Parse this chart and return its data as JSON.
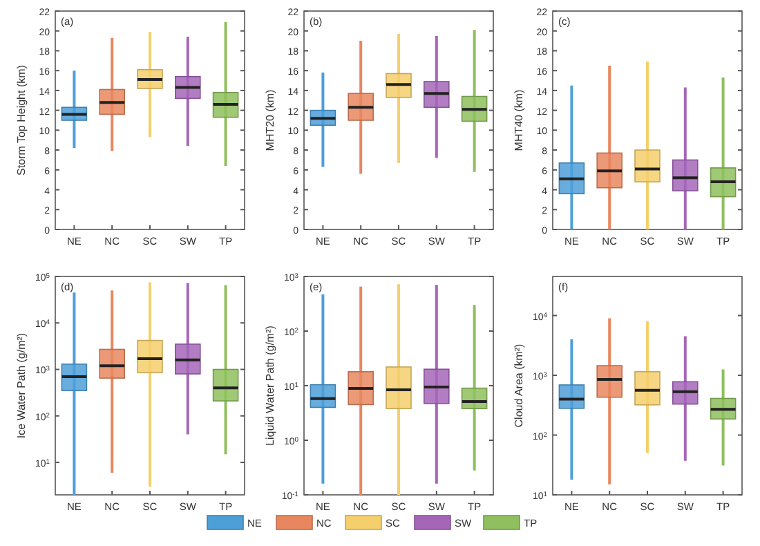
{
  "chart_data": [
    {
      "type": "box",
      "annotations": [
        "(a)"
      ],
      "ylabel": "Storm Top Height (km)",
      "categories": [
        "NE",
        "NC",
        "SC",
        "SW",
        "TP"
      ],
      "colors": [
        "#4d9fd8",
        "#e8875f",
        "#f5cf6c",
        "#a566b8",
        "#8fbf5e"
      ],
      "ylim": [
        0,
        22
      ],
      "yticks": [
        0,
        2,
        4,
        6,
        8,
        10,
        12,
        14,
        16,
        18,
        20,
        22
      ],
      "boxes": [
        {
          "low": 8.2,
          "q1": 11.0,
          "median": 11.6,
          "q3": 12.3,
          "high": 16.0
        },
        {
          "low": 7.9,
          "q1": 11.6,
          "median": 12.8,
          "q3": 14.1,
          "high": 19.3
        },
        {
          "low": 9.3,
          "q1": 14.2,
          "median": 15.1,
          "q3": 16.1,
          "high": 19.9
        },
        {
          "low": 8.4,
          "q1": 13.2,
          "median": 14.3,
          "q3": 15.4,
          "high": 19.4
        },
        {
          "low": 6.4,
          "q1": 11.3,
          "median": 12.6,
          "q3": 13.8,
          "high": 20.9
        }
      ]
    },
    {
      "type": "box",
      "annotations": [
        "(b)"
      ],
      "ylabel": "MHT20 (km)",
      "categories": [
        "NE",
        "NC",
        "SC",
        "SW",
        "TP"
      ],
      "colors": [
        "#4d9fd8",
        "#e8875f",
        "#f5cf6c",
        "#a566b8",
        "#8fbf5e"
      ],
      "ylim": [
        0,
        22
      ],
      "yticks": [
        0,
        2,
        4,
        6,
        8,
        10,
        12,
        14,
        16,
        18,
        20,
        22
      ],
      "boxes": [
        {
          "low": 6.3,
          "q1": 10.5,
          "median": 11.2,
          "q3": 12.0,
          "high": 15.8
        },
        {
          "low": 5.6,
          "q1": 11.0,
          "median": 12.3,
          "q3": 13.7,
          "high": 19.0
        },
        {
          "low": 6.7,
          "q1": 13.3,
          "median": 14.6,
          "q3": 15.7,
          "high": 19.7
        },
        {
          "low": 7.2,
          "q1": 12.3,
          "median": 13.7,
          "q3": 14.9,
          "high": 19.5
        },
        {
          "low": 5.8,
          "q1": 10.9,
          "median": 12.1,
          "q3": 13.4,
          "high": 20.1
        }
      ]
    },
    {
      "type": "box",
      "annotations": [
        "(c)"
      ],
      "ylabel": "MHT40 (km)",
      "categories": [
        "NE",
        "NC",
        "SC",
        "SW",
        "TP"
      ],
      "colors": [
        "#4d9fd8",
        "#e8875f",
        "#f5cf6c",
        "#a566b8",
        "#8fbf5e"
      ],
      "ylim": [
        0,
        22
      ],
      "yticks": [
        0,
        2,
        4,
        6,
        8,
        10,
        12,
        14,
        16,
        18,
        20,
        22
      ],
      "boxes": [
        {
          "low": 0,
          "q1": 3.6,
          "median": 5.1,
          "q3": 6.7,
          "high": 14.5
        },
        {
          "low": 0,
          "q1": 4.2,
          "median": 5.9,
          "q3": 7.7,
          "high": 16.5
        },
        {
          "low": 0,
          "q1": 4.8,
          "median": 6.1,
          "q3": 8.0,
          "high": 16.9
        },
        {
          "low": 0,
          "q1": 3.9,
          "median": 5.2,
          "q3": 7.0,
          "high": 14.3
        },
        {
          "low": 0,
          "q1": 3.3,
          "median": 4.8,
          "q3": 6.2,
          "high": 15.3
        }
      ]
    },
    {
      "type": "box",
      "annotations": [
        "(d)"
      ],
      "ylabel": "Ice Water Path (g/m²)",
      "log": true,
      "categories": [
        "NE",
        "NC",
        "SC",
        "SW",
        "TP"
      ],
      "colors": [
        "#4d9fd8",
        "#e8875f",
        "#f5cf6c",
        "#a566b8",
        "#8fbf5e"
      ],
      "ylim": [
        2,
        100000
      ],
      "yticks": [
        {
          "value": 10,
          "label": "10$^{1}$"
        },
        {
          "value": 100,
          "label": "10$^{2}$"
        },
        {
          "value": 1000,
          "label": "10$^{3}$"
        },
        {
          "value": 10000,
          "label": "10$^{4}$"
        },
        {
          "value": 100000,
          "label": "10$^{5}$"
        }
      ],
      "boxes": [
        {
          "low": 2,
          "q1": 350,
          "median": 700,
          "q3": 1300,
          "high": 45000
        },
        {
          "low": 6,
          "q1": 650,
          "median": 1200,
          "q3": 2700,
          "high": 50000
        },
        {
          "low": 3,
          "q1": 850,
          "median": 1700,
          "q3": 4200,
          "high": 75000
        },
        {
          "low": 40,
          "q1": 800,
          "median": 1600,
          "q3": 3500,
          "high": 72000
        },
        {
          "low": 15,
          "q1": 210,
          "median": 400,
          "q3": 1000,
          "high": 65000
        }
      ]
    },
    {
      "type": "box",
      "annotations": [
        "(e)"
      ],
      "ylabel": "Liquid Water Path (g/m²)",
      "log": true,
      "legend": "bottom",
      "categories": [
        "NE",
        "NC",
        "SC",
        "SW",
        "TP"
      ],
      "ylim": [
        0.1,
        1000
      ],
      "yticks": [
        {
          "value": 0.1,
          "label": "10$^{-1}$"
        },
        {
          "value": 1,
          "label": "10$^{0}$"
        },
        {
          "value": 10,
          "label": "10$^{1}$"
        },
        {
          "value": 100,
          "label": "10$^{2}$"
        },
        {
          "value": 1000,
          "label": "10$^{3}$"
        }
      ],
      "series": [
        {
          "name": "NE",
          "color": "#4d9fd8",
          "boxes": [
            {
              "low": 0.16,
              "q1": 4,
              "median": 5.8,
              "q3": 10.4,
              "high": 470
            },
            null,
            null,
            null,
            null
          ]
        },
        {
          "name": "NC",
          "color": "#e8875f",
          "boxes": [
            null,
            {
              "low": 0.1,
              "q1": 4.5,
              "median": 8.9,
              "q3": 18,
              "high": 650
            },
            null,
            null,
            null
          ]
        },
        {
          "name": "SC",
          "color": "#f5cf6c",
          "boxes": [
            null,
            null,
            {
              "low": 0.1,
              "q1": 3.8,
              "median": 8.4,
              "q3": 22,
              "high": 720
            },
            null,
            null
          ]
        },
        {
          "name": "SW",
          "color": "#a566b8",
          "boxes": [
            null,
            null,
            null,
            {
              "low": 0.16,
              "q1": 4.7,
              "median": 9.4,
              "q3": 20,
              "high": 700
            },
            null
          ]
        },
        {
          "name": "TP",
          "color": "#8fbf5e",
          "boxes": [
            null,
            null,
            null,
            null,
            {
              "low": 0.28,
              "q1": 3.8,
              "median": 5.1,
              "q3": 9,
              "high": 300
            }
          ]
        }
      ]
    },
    {
      "type": "box",
      "annotations": [
        "(f)"
      ],
      "ylabel": "Cloud Area (km²)",
      "log": true,
      "categories": [
        "NE",
        "NC",
        "SC",
        "SW",
        "TP"
      ],
      "colors": [
        "#4d9fd8",
        "#e8875f",
        "#f5cf6c",
        "#a566b8",
        "#8fbf5e"
      ],
      "ylim": [
        10,
        45000
      ],
      "yticks": [
        {
          "value": 10,
          "label": "10$^{1}$"
        },
        {
          "value": 100,
          "label": "10$^{2}$"
        },
        {
          "value": 1000,
          "label": "10$^{3}$"
        },
        {
          "value": 10000,
          "label": "10$^{4}$"
        }
      ],
      "boxes": [
        {
          "low": 18,
          "q1": 280,
          "median": 400,
          "q3": 690,
          "high": 4000
        },
        {
          "low": 15,
          "q1": 430,
          "median": 850,
          "q3": 1450,
          "high": 9000
        },
        {
          "low": 50,
          "q1": 320,
          "median": 560,
          "q3": 1150,
          "high": 8000
        },
        {
          "low": 37,
          "q1": 330,
          "median": 530,
          "q3": 780,
          "high": 4500
        },
        {
          "low": 31,
          "q1": 186,
          "median": 270,
          "q3": 410,
          "high": 1250
        }
      ]
    }
  ]
}
